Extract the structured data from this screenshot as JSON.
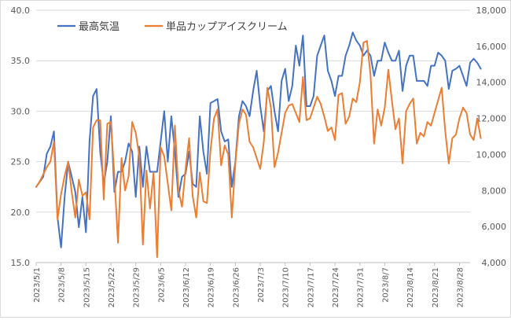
{
  "chart_data": {
    "type": "line",
    "title": "",
    "xlabel": "",
    "ylabel_left": "",
    "ylabel_right": "",
    "y_left_lim": [
      15.0,
      40.0
    ],
    "y_left_ticks": [
      "15.0",
      "20.0",
      "25.0",
      "30.0",
      "35.0",
      "40.0"
    ],
    "y_right_lim": [
      4000,
      18000
    ],
    "y_right_ticks": [
      "4,000",
      "6,000",
      "8,000",
      "10,000",
      "12,000",
      "14,000",
      "16,000",
      "18,000"
    ],
    "x_start": "2023-05-01",
    "x_end": "2023-08-31",
    "x_tick_labels": [
      "2023/5/1",
      "2023/5/8",
      "2023/5/15",
      "2023/5/22",
      "2023/5/29",
      "2023/6/5",
      "2023/6/12",
      "2023/6/19",
      "2023/6/26",
      "2023/7/3",
      "2023/7/10",
      "2023/7/17",
      "2023/7/24",
      "2023/7/31",
      "2023/8/7",
      "2023/8/14",
      "2023/8/21",
      "2023/8/28"
    ],
    "grid": "horizontal",
    "legend": "top-left",
    "series": [
      {
        "name": "最高気温",
        "axis": "left",
        "color": "#4472c4",
        "values": [
          22.5,
          23.0,
          23.5,
          25.8,
          26.5,
          28.0,
          19.5,
          16.5,
          21.5,
          25.0,
          23.5,
          22.0,
          18.5,
          21.5,
          18.0,
          27.0,
          31.5,
          32.2,
          26.0,
          22.8,
          25.0,
          29.5,
          22.0,
          24.0,
          24.0,
          25.0,
          26.8,
          26.0,
          21.5,
          26.5,
          22.5,
          26.5,
          24.0,
          24.0,
          24.0,
          27.0,
          30.0,
          25.0,
          29.5,
          26.0,
          21.5,
          23.5,
          23.8,
          26.0,
          22.8,
          22.5,
          29.5,
          26.0,
          23.8,
          30.8,
          31.0,
          31.2,
          28.0,
          27.0,
          27.2,
          22.5,
          25.0,
          29.5,
          31.0,
          30.5,
          29.5,
          32.0,
          34.0,
          30.5,
          28.0,
          32.0,
          32.5,
          30.0,
          28.0,
          33.0,
          34.2,
          31.0,
          32.5,
          36.5,
          34.5,
          37.5,
          30.5,
          30.5,
          31.5,
          35.5,
          36.5,
          37.5,
          34.0,
          33.0,
          31.5,
          33.5,
          33.5,
          35.5,
          36.5,
          37.8,
          37.0,
          36.5,
          35.5,
          36.0,
          35.5,
          33.5,
          35.0,
          35.0,
          36.8,
          35.8,
          35.0,
          35.0,
          36.0,
          32.0,
          34.5,
          35.5,
          35.5,
          33.0,
          33.0,
          33.0,
          32.5,
          34.5,
          34.5,
          35.8,
          35.5,
          35.0,
          32.2,
          34.0,
          34.2,
          34.5,
          33.5,
          32.5,
          34.8,
          35.2,
          34.8,
          34.2
        ]
      },
      {
        "name": "単品カップアイスクリーム",
        "axis": "right",
        "color": "#ed7d31",
        "values": [
          8200,
          8500,
          8900,
          9300,
          9600,
          10700,
          6400,
          7800,
          8800,
          9600,
          7900,
          6500,
          8600,
          7700,
          7900,
          6400,
          11500,
          11900,
          11900,
          7500,
          11700,
          11800,
          8800,
          5100,
          9800,
          8000,
          8800,
          11800,
          11200,
          9900,
          5000,
          9100,
          7000,
          9000,
          4300,
          10400,
          9900,
          8400,
          6900,
          11600,
          8000,
          7100,
          9200,
          10900,
          7700,
          6500,
          9000,
          7400,
          7300,
          10200,
          12000,
          12500,
          9400,
          10500,
          10000,
          6500,
          9500,
          11700,
          12500,
          12200,
          10700,
          10400,
          9800,
          9200,
          10700,
          13700,
          12600,
          9300,
          10100,
          11200,
          12300,
          12700,
          12800,
          12300,
          11800,
          14300,
          11900,
          12000,
          12600,
          13200,
          12800,
          12100,
          11300,
          11500,
          10800,
          13300,
          13400,
          11700,
          12100,
          13100,
          12900,
          14000,
          16200,
          16300,
          14400,
          10600,
          12500,
          11600,
          12600,
          14700,
          13000,
          11400,
          12000,
          9500,
          12400,
          12800,
          13100,
          10600,
          11200,
          11000,
          11800,
          11600,
          12300,
          13000,
          13700,
          11300,
          9500,
          10900,
          11100,
          12000,
          12600,
          12300,
          11100,
          10800,
          12000,
          10900
        ]
      }
    ]
  }
}
